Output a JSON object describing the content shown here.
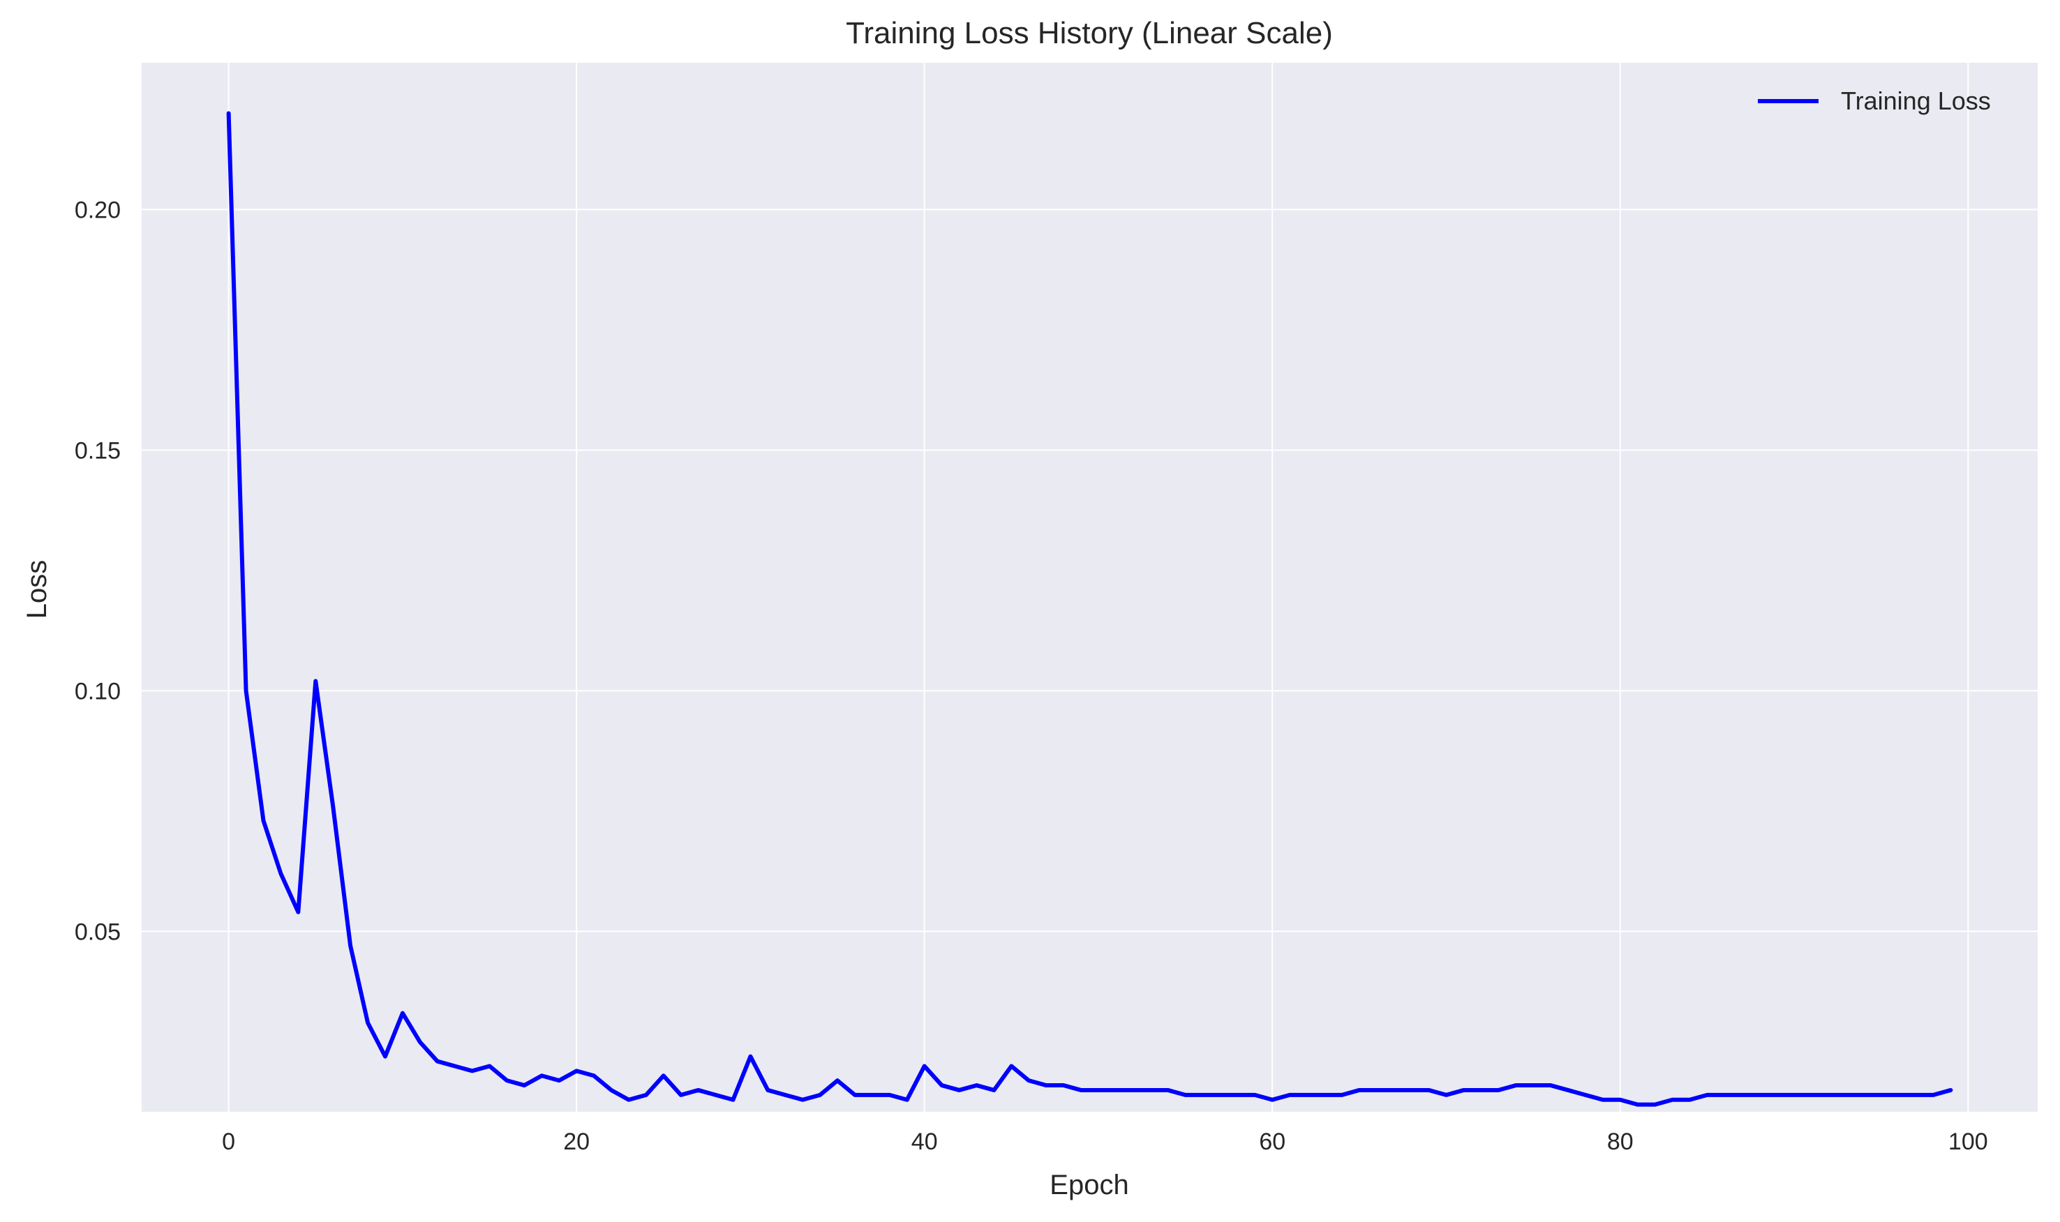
{
  "chart_data": {
    "type": "line",
    "title": "Training Loss History (Linear Scale)",
    "xlabel": "Epoch",
    "ylabel": "Loss",
    "xlim": [
      -5,
      104
    ],
    "ylim": [
      0.0125,
      0.2305
    ],
    "x_ticks": [
      0,
      20,
      40,
      60,
      80,
      100
    ],
    "y_ticks": [
      0.05,
      0.1,
      0.15,
      0.2
    ],
    "x_tick_labels": [
      "0",
      "20",
      "40",
      "60",
      "80",
      "100"
    ],
    "y_tick_labels": [
      "0.05",
      "0.10",
      "0.15",
      "0.20"
    ],
    "grid": true,
    "legend_position": "top-right",
    "colors": {
      "plot_background": "#eaeaf2",
      "grid": "#ffffff",
      "line": "#0000ff"
    },
    "series": [
      {
        "name": "Training Loss",
        "x": [
          0,
          1,
          2,
          3,
          4,
          5,
          6,
          7,
          8,
          9,
          10,
          11,
          12,
          13,
          14,
          15,
          16,
          17,
          18,
          19,
          20,
          21,
          22,
          23,
          24,
          25,
          26,
          27,
          28,
          29,
          30,
          31,
          32,
          33,
          34,
          35,
          36,
          37,
          38,
          39,
          40,
          41,
          42,
          43,
          44,
          45,
          46,
          47,
          48,
          49,
          50,
          51,
          52,
          53,
          54,
          55,
          56,
          57,
          58,
          59,
          60,
          61,
          62,
          63,
          64,
          65,
          66,
          67,
          68,
          69,
          70,
          71,
          72,
          73,
          74,
          75,
          76,
          77,
          78,
          79,
          80,
          81,
          82,
          83,
          84,
          85,
          86,
          87,
          88,
          89,
          90,
          91,
          92,
          93,
          94,
          95,
          96,
          97,
          98,
          99
        ],
        "values": [
          0.22,
          0.1,
          0.073,
          0.062,
          0.054,
          0.102,
          0.076,
          0.047,
          0.031,
          0.024,
          0.033,
          0.027,
          0.023,
          0.022,
          0.021,
          0.022,
          0.019,
          0.018,
          0.02,
          0.019,
          0.021,
          0.02,
          0.017,
          0.015,
          0.016,
          0.02,
          0.016,
          0.017,
          0.016,
          0.015,
          0.024,
          0.017,
          0.016,
          0.015,
          0.016,
          0.019,
          0.016,
          0.016,
          0.016,
          0.015,
          0.022,
          0.018,
          0.017,
          0.018,
          0.017,
          0.022,
          0.019,
          0.018,
          0.018,
          0.017,
          0.017,
          0.017,
          0.017,
          0.017,
          0.017,
          0.016,
          0.016,
          0.016,
          0.016,
          0.016,
          0.015,
          0.016,
          0.016,
          0.016,
          0.016,
          0.017,
          0.017,
          0.017,
          0.017,
          0.017,
          0.016,
          0.017,
          0.017,
          0.017,
          0.018,
          0.018,
          0.018,
          0.017,
          0.016,
          0.015,
          0.015,
          0.014,
          0.014,
          0.015,
          0.015,
          0.016,
          0.016,
          0.016,
          0.016,
          0.016,
          0.016,
          0.016,
          0.016,
          0.016,
          0.016,
          0.016,
          0.016,
          0.016,
          0.016,
          0.017
        ]
      }
    ]
  }
}
